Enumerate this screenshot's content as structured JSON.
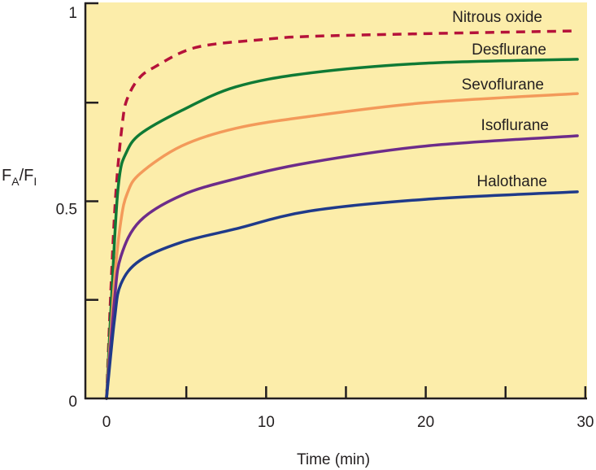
{
  "chart_data": {
    "type": "line",
    "title": "",
    "xlabel": "Time (min)",
    "ylabel": {
      "main": "F",
      "sub1": "A",
      "slash": "/F",
      "sub2": "I"
    },
    "xlim": [
      0,
      30
    ],
    "ylim": [
      0,
      1
    ],
    "xticks": [
      0,
      5,
      10,
      15,
      20,
      25,
      30
    ],
    "xtick_labels": [
      {
        "v": 0,
        "t": "0"
      },
      {
        "v": 10,
        "t": "10"
      },
      {
        "v": 20,
        "t": "20"
      },
      {
        "v": 30,
        "t": "30"
      }
    ],
    "yticks": [
      0,
      0.25,
      0.5,
      0.75,
      1
    ],
    "ytick_labels": [
      {
        "v": 0,
        "t": "0"
      },
      {
        "v": 0.5,
        "t": "0.5"
      },
      {
        "v": 1,
        "t": "1"
      }
    ],
    "grid": false,
    "background": "#fcedaa",
    "series": [
      {
        "name": "Nitrous oxide",
        "color": "#b5123a",
        "dashed": true,
        "points": [
          [
            0,
            0
          ],
          [
            0.3,
            0.3
          ],
          [
            0.6,
            0.53
          ],
          [
            1.0,
            0.7
          ],
          [
            1.3,
            0.76
          ],
          [
            2,
            0.81
          ],
          [
            3,
            0.84
          ],
          [
            5.6,
            0.89
          ],
          [
            9.8,
            0.91
          ],
          [
            12.7,
            0.918
          ],
          [
            20,
            0.925
          ],
          [
            29.5,
            0.932
          ]
        ]
      },
      {
        "name": "Desflurane",
        "color": "#0f7a35",
        "dashed": false,
        "points": [
          [
            0,
            0
          ],
          [
            0.5,
            0.4
          ],
          [
            0.8,
            0.56
          ],
          [
            1.2,
            0.62
          ],
          [
            2.1,
            0.67
          ],
          [
            4.7,
            0.73
          ],
          [
            8.1,
            0.79
          ],
          [
            12.7,
            0.825
          ],
          [
            20,
            0.85
          ],
          [
            29.5,
            0.86
          ]
        ]
      },
      {
        "name": "Sevoflurane",
        "color": "#f39a5a",
        "dashed": false,
        "points": [
          [
            0,
            0
          ],
          [
            0.5,
            0.3
          ],
          [
            0.9,
            0.45
          ],
          [
            1.3,
            0.52
          ],
          [
            2.1,
            0.57
          ],
          [
            4.7,
            0.64
          ],
          [
            8.1,
            0.685
          ],
          [
            12.7,
            0.715
          ],
          [
            20,
            0.75
          ],
          [
            29.5,
            0.773
          ]
        ]
      },
      {
        "name": "Isoflurane",
        "color": "#6d2c8a",
        "dashed": false,
        "points": [
          [
            0,
            0
          ],
          [
            0.5,
            0.25
          ],
          [
            0.9,
            0.36
          ],
          [
            2.1,
            0.45
          ],
          [
            4.7,
            0.515
          ],
          [
            8.1,
            0.557
          ],
          [
            12.7,
            0.598
          ],
          [
            20,
            0.64
          ],
          [
            29.5,
            0.666
          ]
        ]
      },
      {
        "name": "Halothane",
        "color": "#1f3a8a",
        "dashed": false,
        "points": [
          [
            0,
            0
          ],
          [
            0.5,
            0.2
          ],
          [
            0.9,
            0.29
          ],
          [
            2.1,
            0.35
          ],
          [
            4.7,
            0.396
          ],
          [
            8.1,
            0.43
          ],
          [
            12.7,
            0.475
          ],
          [
            20,
            0.505
          ],
          [
            29.5,
            0.524
          ]
        ]
      }
    ]
  }
}
